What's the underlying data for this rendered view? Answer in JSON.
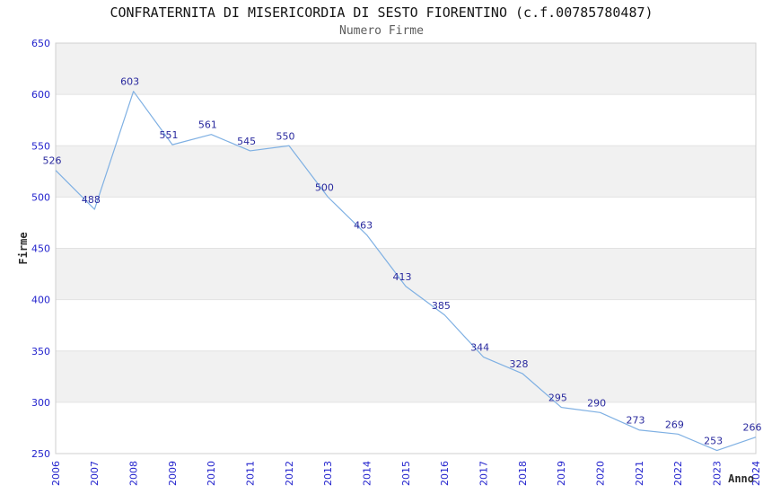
{
  "chart_data": {
    "type": "line",
    "title": "CONFRATERNITA DI MISERICORDIA DI SESTO FIORENTINO (c.f.00785780487)",
    "subtitle": "Numero Firme",
    "xlabel": "Anno",
    "ylabel": "Firme",
    "x": [
      "2006",
      "2007",
      "2008",
      "2009",
      "2010",
      "2011",
      "2012",
      "2013",
      "2014",
      "2015",
      "2016",
      "2017",
      "2018",
      "2019",
      "2020",
      "2021",
      "2022",
      "2023",
      "2024"
    ],
    "values": [
      526,
      488,
      603,
      551,
      561,
      545,
      550,
      500,
      463,
      413,
      385,
      344,
      328,
      295,
      290,
      273,
      269,
      253,
      266
    ],
    "ylim": [
      250,
      650
    ],
    "ytick_step": 50,
    "yticks": [
      250,
      300,
      350,
      400,
      450,
      500,
      550,
      600,
      650
    ],
    "grid": "horizontal-bands",
    "legend_visible": false,
    "markers_visible": false,
    "colors": {
      "background": "#ffffff",
      "band": "#f1f1f1",
      "band_alt": "#ffffff",
      "gridline": "#e2e2e2",
      "border": "#cfcfcf",
      "line": "#7fb0e3",
      "point_label": "#29299e",
      "tick_label": "#2323cd",
      "title": "#141414",
      "subtitle": "#5c5c5c",
      "axis_label": "#2b2b2b"
    }
  }
}
